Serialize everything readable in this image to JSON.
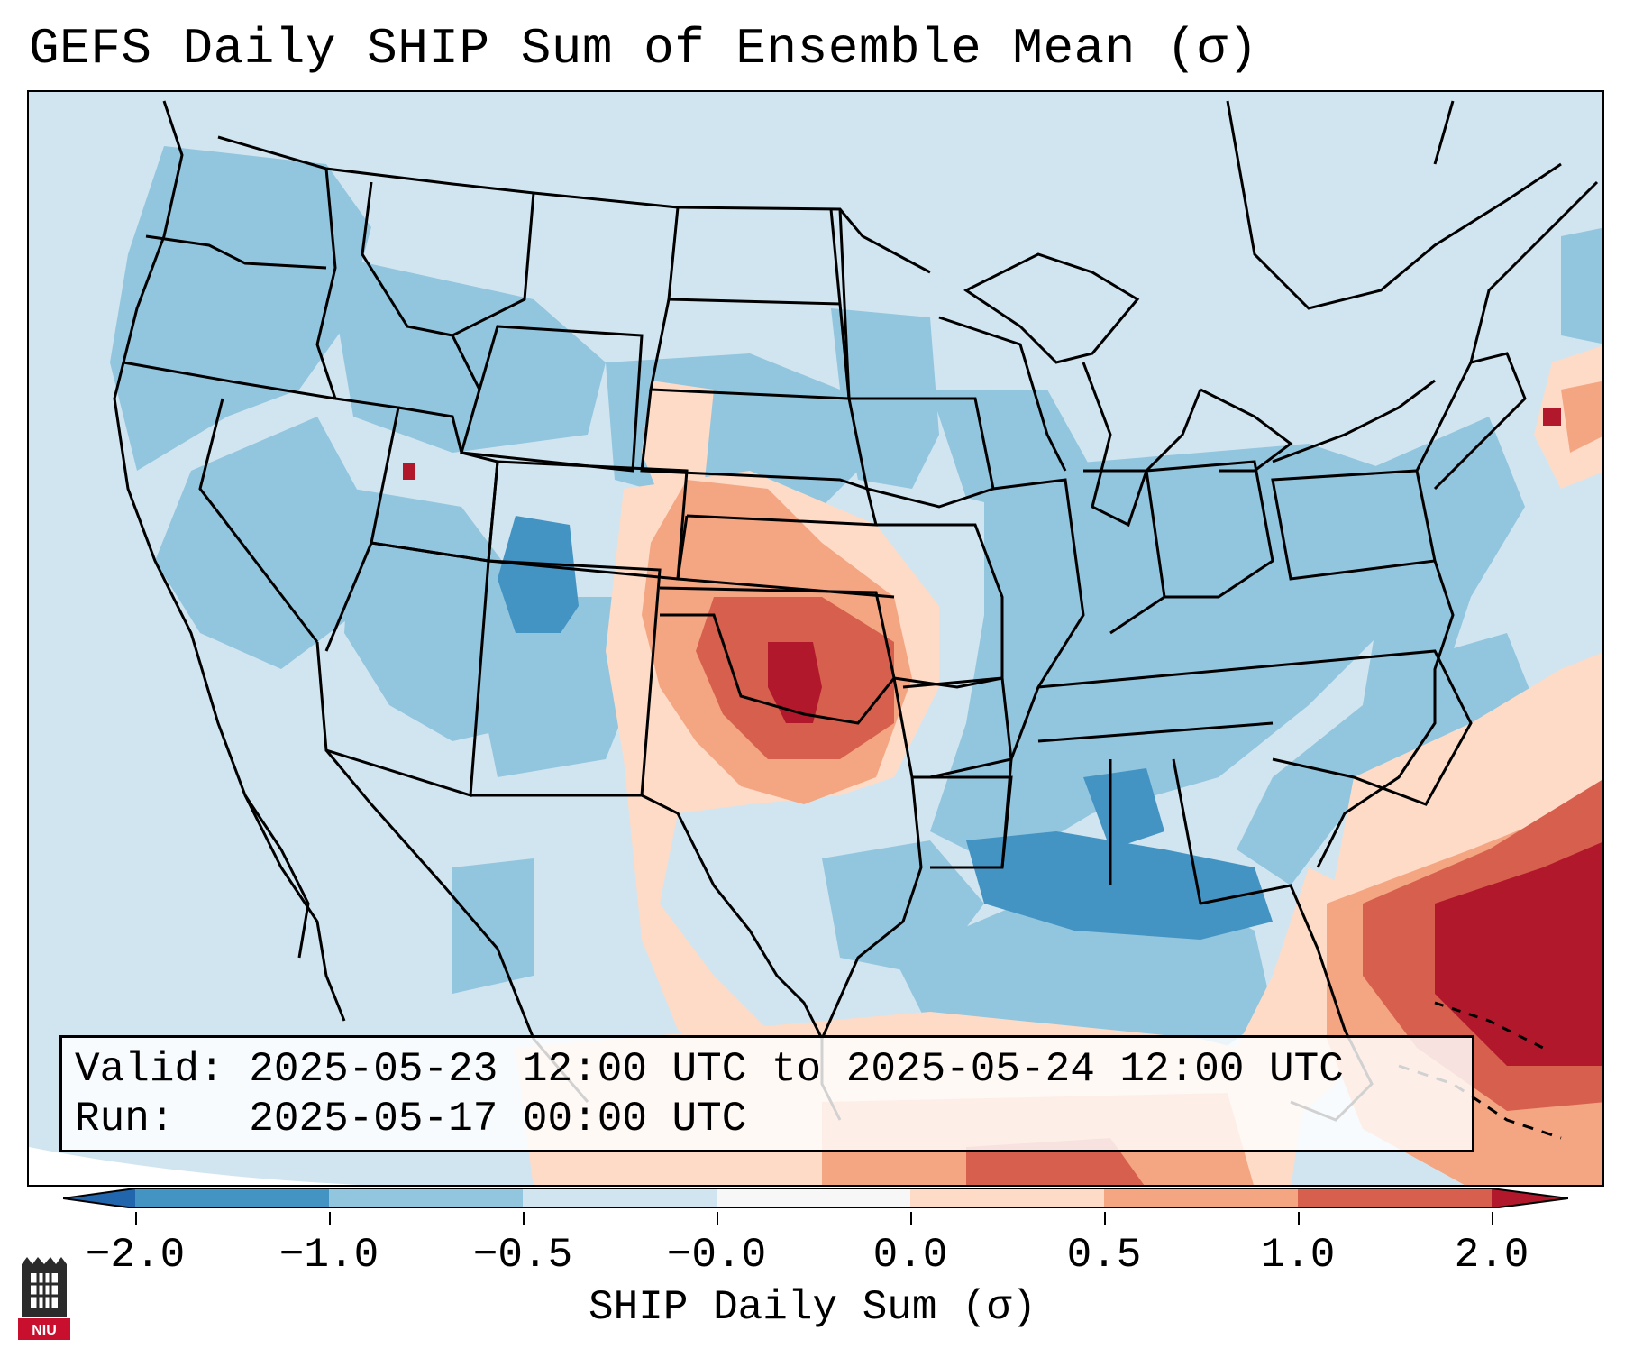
{
  "title": "GEFS Daily SHIP Sum of Ensemble Mean (σ)",
  "info": {
    "valid_label": "Valid:",
    "valid_value": "2025-05-23 12:00 UTC to 2025-05-24 12:00 UTC",
    "run_label": "Run:",
    "run_value": "2025-05-17 00:00 UTC"
  },
  "colorbar": {
    "label": "SHIP Daily Sum (σ)",
    "ticks": [
      "−2.0",
      "−1.0",
      "−0.5",
      "−0.0",
      "0.0",
      "0.5",
      "1.0",
      "2.0"
    ],
    "colors": [
      "#4393c3",
      "#92c5de",
      "#d1e5f0",
      "#f7f7f7",
      "#fddbc7",
      "#f4a582",
      "#d6604d",
      "#b2182b"
    ],
    "under_color": "#2166ac",
    "over_color": "#67001f"
  },
  "logo": {
    "text": "NIU",
    "color": "#c8102e"
  }
}
